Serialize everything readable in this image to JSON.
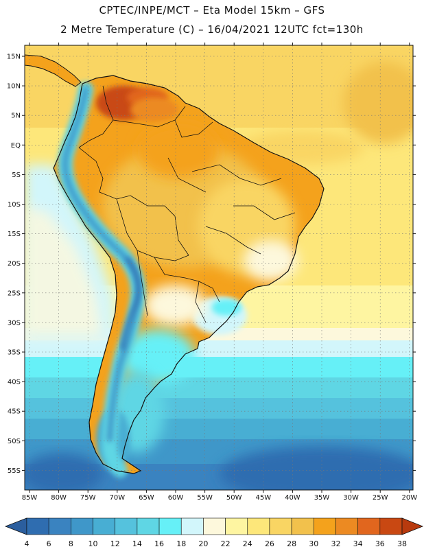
{
  "header": {
    "title_line1": "CPTEC/INPE/MCT –  Eta Model 15km – GFS",
    "title_line2": "2 Metre Temperature (C) – 16/04/2021 12UTC fct=130h"
  },
  "axes": {
    "lat_labels": [
      "15N",
      "10N",
      "5N",
      "EQ",
      "5S",
      "10S",
      "15S",
      "20S",
      "25S",
      "30S",
      "35S",
      "40S",
      "45S",
      "50S",
      "55S"
    ],
    "lon_labels": [
      "85W",
      "80W",
      "75W",
      "70W",
      "65W",
      "60W",
      "55W",
      "50W",
      "45W",
      "40W",
      "35W",
      "30W",
      "25W",
      "20W"
    ]
  },
  "colorbar": {
    "values": [
      "4",
      "6",
      "8",
      "10",
      "12",
      "14",
      "16",
      "18",
      "20",
      "22",
      "24",
      "26",
      "28",
      "30",
      "32",
      "34",
      "36",
      "38"
    ],
    "colors": [
      "#2f6db0",
      "#3a83c0",
      "#3f97c9",
      "#48aed3",
      "#55c2dd",
      "#5fd6e4",
      "#66f0f7",
      "#d2f6fb",
      "#fdf8dc",
      "#fef5a1",
      "#fde77a",
      "#f9d563",
      "#f2c14c",
      "#f4a21c",
      "#ec8a22",
      "#e1661e",
      "#c94812"
    ]
  },
  "colors": {
    "land_outline": "#111111",
    "grid": "#777777"
  }
}
